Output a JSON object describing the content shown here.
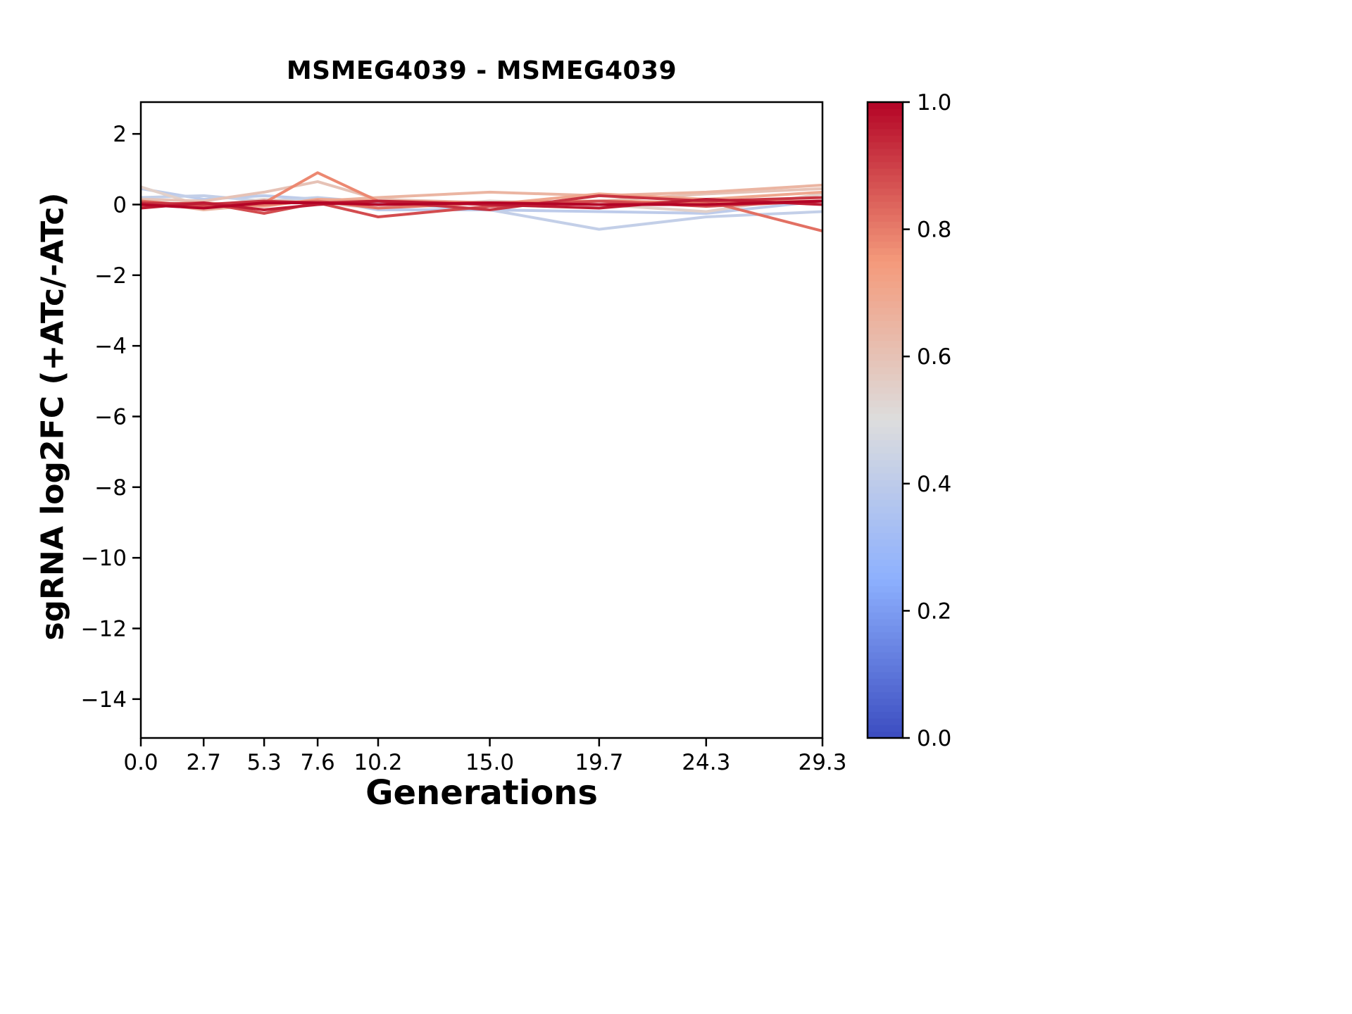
{
  "figure": {
    "background": "#ffffff"
  },
  "chart_data": {
    "type": "line",
    "title": "MSMEG4039 - MSMEG4039",
    "xlabel": "Generations",
    "ylabel": "sgRNA log2FC (+ATc/-ATc)",
    "grid": false,
    "legend": "none",
    "x": [
      0.0,
      2.7,
      5.3,
      7.6,
      10.2,
      15.0,
      19.7,
      24.3,
      29.3
    ],
    "x_tick_labels": [
      "0.0",
      "2.7",
      "5.3",
      "7.6",
      "10.2",
      "15.0",
      "19.7",
      "24.3",
      "29.3"
    ],
    "xlim": [
      0,
      29.3
    ],
    "ylim": [
      -15.1,
      2.9
    ],
    "y_ticks": {
      "values": [
        2,
        0,
        -2,
        -4,
        -6,
        -8,
        -10,
        -12,
        -14
      ],
      "labels": [
        "2",
        "0",
        "−2",
        "−4",
        "−6",
        "−8",
        "−10",
        "−12",
        "−14"
      ]
    },
    "series": [
      {
        "c": 0.4,
        "values": [
          0.45,
          0.15,
          0.25,
          0.15,
          -0.15,
          -0.15,
          -0.2,
          -0.25,
          0.1
        ]
      },
      {
        "c": 0.42,
        "values": [
          0.2,
          0.25,
          0.1,
          0.2,
          0.05,
          -0.15,
          -0.7,
          -0.35,
          -0.2
        ]
      },
      {
        "c": 0.55,
        "values": [
          0.5,
          -0.05,
          0.15,
          0.05,
          -0.1,
          0.1,
          0.0,
          -0.2,
          0.3
        ]
      },
      {
        "c": 0.6,
        "values": [
          0.15,
          0.1,
          0.35,
          0.65,
          0.15,
          0.05,
          0.1,
          0.3,
          0.45
        ]
      },
      {
        "c": 0.65,
        "values": [
          0.1,
          -0.15,
          0.0,
          0.1,
          0.2,
          0.35,
          0.25,
          0.35,
          0.55
        ]
      },
      {
        "c": 0.7,
        "values": [
          0.0,
          0.05,
          -0.05,
          0.15,
          0.1,
          0.0,
          0.3,
          0.15,
          0.35
        ]
      },
      {
        "c": 0.78,
        "values": [
          -0.05,
          0.0,
          0.05,
          0.9,
          0.1,
          0.05,
          0.1,
          0.05,
          0.1
        ]
      },
      {
        "c": 0.82,
        "values": [
          0.1,
          -0.05,
          0.0,
          0.1,
          -0.1,
          0.05,
          0.0,
          0.1,
          -0.75
        ]
      },
      {
        "c": 0.88,
        "values": [
          0.0,
          0.05,
          -0.25,
          0.05,
          -0.35,
          -0.05,
          0.1,
          -0.05,
          0.1
        ]
      },
      {
        "c": 0.92,
        "values": [
          0.05,
          0.0,
          0.1,
          0.05,
          0.1,
          -0.15,
          0.25,
          0.1,
          0.2
        ]
      },
      {
        "c": 0.96,
        "values": [
          -0.1,
          0.05,
          -0.15,
          0.0,
          0.1,
          0.0,
          -0.1,
          0.15,
          0.0
        ]
      },
      {
        "c": 1.0,
        "values": [
          0.0,
          -0.1,
          0.05,
          0.05,
          0.0,
          0.05,
          0.0,
          0.0,
          0.1
        ]
      }
    ],
    "colorbar": {
      "colormap": "coolwarm",
      "min": 0.0,
      "max": 1.0,
      "tick_values": [
        0.0,
        0.2,
        0.4,
        0.6,
        0.8,
        1.0
      ],
      "tick_labels": [
        "0.0",
        "0.2",
        "0.4",
        "0.6",
        "0.8",
        "1.0"
      ],
      "colormap_stops": [
        "#3b4cc0",
        "#8db0fe",
        "#dddddd",
        "#f49a7b",
        "#b40426"
      ]
    }
  }
}
